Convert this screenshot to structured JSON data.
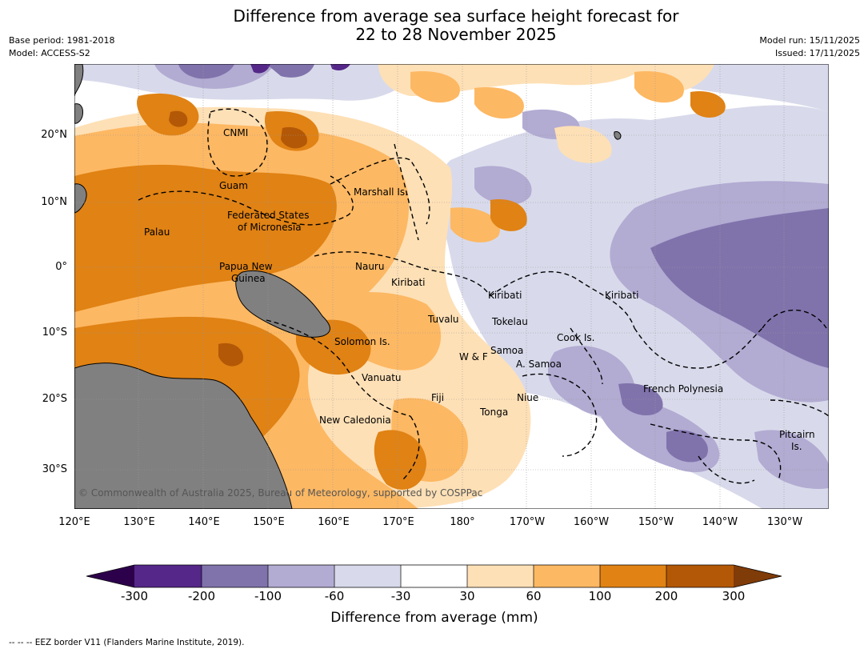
{
  "title": {
    "line1": "Difference from average sea surface height forecast for",
    "line2": "22 to 28 November 2025"
  },
  "header": {
    "base_period": "Base period: 1981-2018",
    "model": "Model: ACCESS-S2",
    "model_run": "Model run: 15/11/2025",
    "issued": "Issued: 17/11/2025"
  },
  "map": {
    "lon_ticks": [
      "120°E",
      "130°E",
      "140°E",
      "150°E",
      "160°E",
      "170°E",
      "180°",
      "170°W",
      "160°W",
      "150°W",
      "140°W",
      "130°W"
    ],
    "lat_ticks": [
      "20°N",
      "10°N",
      "0°",
      "10°S",
      "20°S",
      "30°S"
    ],
    "place_labels": {
      "cnmi": "CNMI",
      "guam": "Guam",
      "fsm_1": "Federated States",
      "fsm_2": "of Micronesia",
      "palau": "Palau",
      "marshall": "Marshall Is.",
      "png_1": "Papua New",
      "png_2": "Guinea",
      "nauru": "Nauru",
      "kiribati_w": "Kiribati",
      "kiribati_c": "Kiribati",
      "kiribati_e": "Kiribati",
      "tuvalu": "Tuvalu",
      "tokelau": "Tokelau",
      "solomon": "Solomon Is.",
      "cook": "Cook Is.",
      "wf": "W & F",
      "samoa": "Samoa",
      "asamoa": "A. Samoa",
      "vanuatu": "Vanuatu",
      "french_polynesia": "French Polynesia",
      "fiji": "Fiji",
      "niue": "Niue",
      "tonga": "Tonga",
      "new_caledonia": "New Caledonia",
      "pitcairn_1": "Pitcairn",
      "pitcairn_2": "Is."
    },
    "copyright": "© Commonwealth of Australia 2025, Bureau of Meteorology, supported by COSPPac",
    "land_color": "#808080"
  },
  "colorbar": {
    "title": "Difference from average (mm)",
    "labels": [
      "-300",
      "-200",
      "-100",
      "-60",
      "-30",
      "30",
      "60",
      "100",
      "200",
      "300"
    ],
    "colors": [
      "#2d004b",
      "#542788",
      "#8073ac",
      "#b2abd2",
      "#d8daeb",
      "#ffffff",
      "#fee0b6",
      "#fdb863",
      "#e08214",
      "#b35806",
      "#7f3b08"
    ]
  },
  "footnote": "--  --  -- EEZ border V11 (Flanders Marine Institute, 2019)."
}
